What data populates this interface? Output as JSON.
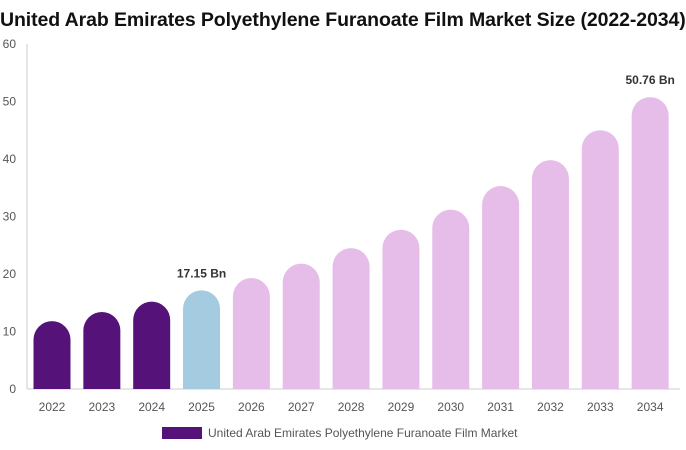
{
  "chart_data": {
    "type": "bar",
    "title": "United Arab Emirates Polyethylene Furanoate Film Market Size (2022-2034)",
    "xlabel": "",
    "ylabel": "",
    "categories": [
      "2022",
      "2023",
      "2024",
      "2025",
      "2026",
      "2027",
      "2028",
      "2029",
      "2030",
      "2031",
      "2032",
      "2033",
      "2034"
    ],
    "series": [
      {
        "name": "United Arab Emirates Polyethylene Furanoate Film Market",
        "values": [
          11.8,
          13.4,
          15.2,
          17.15,
          19.3,
          21.8,
          24.5,
          27.7,
          31.2,
          35.3,
          39.8,
          45.0,
          50.76
        ]
      }
    ],
    "bar_colors": [
      "#55137a",
      "#55137a",
      "#55137a",
      "#a4cbe0",
      "#e6bde9",
      "#e6bde9",
      "#e6bde9",
      "#e6bde9",
      "#e6bde9",
      "#e6bde9",
      "#e6bde9",
      "#e6bde9",
      "#e6bde9"
    ],
    "annotations": [
      {
        "category": "2025",
        "text": "17.15 Bn"
      },
      {
        "category": "2034",
        "text": "50.76 Bn"
      }
    ],
    "ylim": [
      0,
      60
    ],
    "yticks": [
      0,
      10,
      20,
      30,
      40,
      50,
      60
    ],
    "grid": false,
    "legend_position": "bottom-center"
  },
  "colors": {
    "historical": "#55137a",
    "current": "#a4cbe0",
    "forecast": "#e6bde9",
    "axis": "#cccccc"
  }
}
